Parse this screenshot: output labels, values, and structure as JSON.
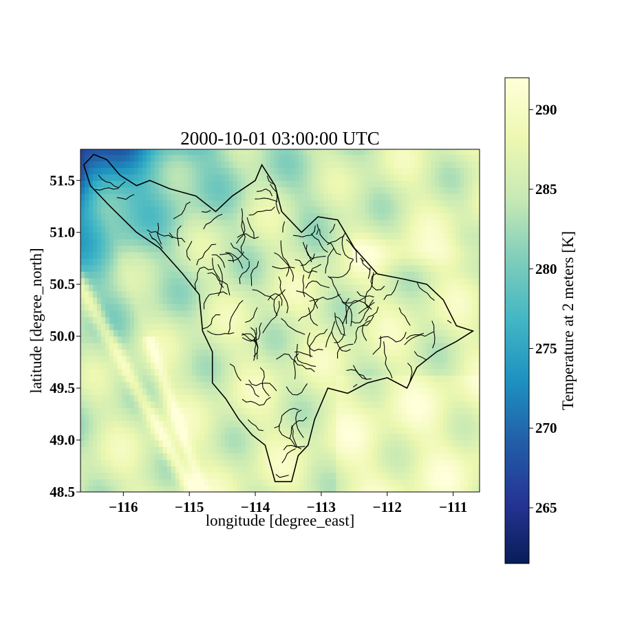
{
  "chart_data": {
    "type": "heatmap",
    "title": "2000-10-01 03:00:00 UTC",
    "xlabel": "longitude [degree_east]",
    "ylabel": "latitude [degree_north]",
    "xlim": [
      -116.65,
      -110.6
    ],
    "ylim": [
      48.5,
      51.8
    ],
    "x_ticks": [
      -116,
      -115,
      -114,
      -113,
      -112,
      -111
    ],
    "x_tick_labels": [
      "−116",
      "−115",
      "−114",
      "−113",
      "−112",
      "−111"
    ],
    "y_ticks": [
      48.5,
      49.0,
      49.5,
      50.0,
      50.5,
      51.0,
      51.5
    ],
    "y_tick_labels": [
      "48.5",
      "49.0",
      "49.5",
      "50.0",
      "50.5",
      "51.0",
      "51.5"
    ],
    "colorbar": {
      "label": "Temperature at 2 meters [K]",
      "range": [
        261.5,
        292
      ],
      "ticks": [
        265,
        270,
        275,
        280,
        285,
        290
      ],
      "tick_labels": [
        "265",
        "270",
        "275",
        "280",
        "285",
        "290"
      ],
      "colormap": "YlGnBu_r",
      "colors": [
        "#081d58",
        "#253494",
        "#225ea8",
        "#1d91c0",
        "#41b6c4",
        "#7fcdbb",
        "#c7e9b4",
        "#edf8b1",
        "#ffffd9"
      ]
    },
    "grid": false,
    "overlay": "sub-basin boundary polygons (black outlines)"
  }
}
